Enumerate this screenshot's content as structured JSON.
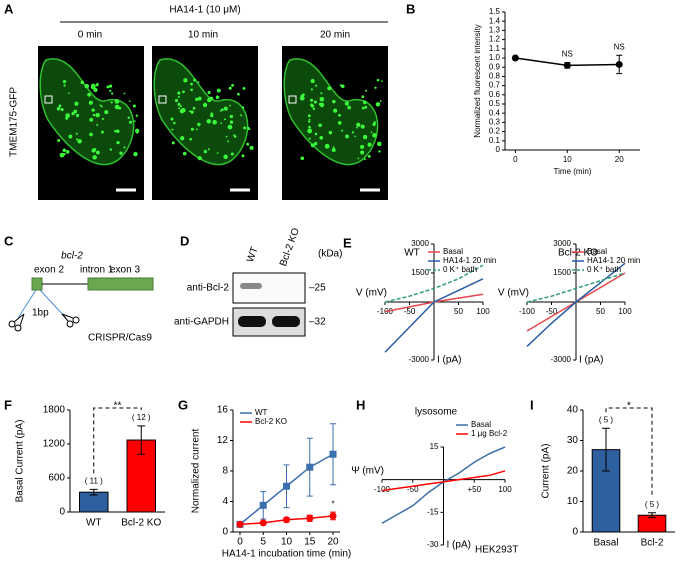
{
  "panel_labels": [
    "A",
    "B",
    "C",
    "D",
    "E",
    "F",
    "G",
    "H",
    "I"
  ],
  "panel_a": {
    "treatment": "HA14-1 (10 μM)",
    "timepoints": [
      "0 min",
      "10 min",
      "20 min"
    ],
    "ylabel": "TMEM175-GFP"
  },
  "panel_c": {
    "gene": "bcl-2",
    "exon2": "exon 2",
    "intron": "intron 1",
    "exon3": "exon 3",
    "deletion": "1bp",
    "method": "CRISPR/Cas9"
  },
  "panel_d": {
    "lanes": [
      "WT",
      "Bcl-2 KO"
    ],
    "unit": "(kDa)",
    "rows": [
      {
        "antibody": "anti-Bcl-2",
        "marker": "–25"
      },
      {
        "antibody": "anti-GAPDH",
        "marker": "–32"
      }
    ]
  },
  "chart_data": [
    {
      "type": "line",
      "ylabel": "Normalized fluorescent intensity",
      "xlabel": "Time (min)",
      "x": [
        0,
        10,
        20
      ],
      "series": [
        {
          "color": "#000000",
          "marker": "circle",
          "values": [
            1.0,
            0.92,
            0.93
          ],
          "errors": [
            0.01,
            0.03,
            0.1
          ],
          "labels": [
            null,
            "NS",
            "NS"
          ]
        }
      ],
      "xlim": [
        -2,
        24
      ],
      "xticks": [
        0,
        10,
        20
      ],
      "ylim": [
        0,
        1.5
      ],
      "yticks": [
        0,
        0.1,
        0.2,
        0.3,
        0.4,
        0.5,
        0.6,
        0.7,
        0.8,
        0.9,
        {
          "value": 1,
          "label": "1.0"
        },
        1.1,
        1.2,
        1.3,
        1.4,
        1.5
      ]
    },
    {
      "type": "line",
      "title": "WT",
      "axes": "origin",
      "xlabel": "V (mV)",
      "ylabel": "I (pA)",
      "x": [
        -100,
        -50,
        0,
        50,
        100
      ],
      "series": [
        {
          "name": "Basal",
          "color": "#e8474a",
          "values": [
            -500,
            -250,
            0,
            200,
            400
          ]
        },
        {
          "name": "HA14-1 20 min",
          "color": "#2a5ca8",
          "values": [
            -2600,
            -1300,
            0,
            600,
            1200
          ]
        },
        {
          "name": "0 K⁺ bath",
          "color": "#2f9e74",
          "dash": true,
          "values": [
            0,
            300,
            700,
            1200,
            1900
          ]
        }
      ],
      "xlim": [
        -100,
        100
      ],
      "xticks": [
        -100,
        -50,
        50,
        100
      ],
      "ylim": [
        -3000,
        3000
      ],
      "yticks": [
        -3000,
        1500,
        3000
      ],
      "legend": "upper left"
    },
    {
      "type": "line",
      "title": "Bcl-2 KO",
      "axes": "origin",
      "xlabel": "V (mV)",
      "ylabel": "I (pA)",
      "x": [
        -100,
        -50,
        0,
        50,
        100
      ],
      "series": [
        {
          "name": "Basal",
          "color": "#e8474a",
          "values": [
            -1500,
            -750,
            0,
            750,
            1500
          ]
        },
        {
          "name": "HA14-1 20 min",
          "color": "#2a5ca8",
          "values": [
            -2300,
            -1100,
            0,
            1000,
            2000
          ]
        },
        {
          "name": "0 K⁺ bath",
          "color": "#2f9e74",
          "dash": true,
          "values": [
            0,
            300,
            700,
            1100,
            1500
          ]
        }
      ],
      "xlim": [
        -100,
        100
      ],
      "xticks": [
        -100,
        -50,
        50,
        100
      ],
      "ylim": [
        -3000,
        3000
      ],
      "yticks": [
        -3000,
        1500,
        3000
      ],
      "legend": "upper left"
    },
    {
      "type": "bar",
      "ylabel": "Basal Current (pA)",
      "categories": [
        "WT",
        "Bcl-2 KO"
      ],
      "values": [
        350,
        1270
      ],
      "errors": [
        50,
        250
      ],
      "colors": [
        "#2e5f9e",
        "#ff0000"
      ],
      "n_labels": [
        "( 11 )",
        "( 12 )"
      ],
      "significance": "**",
      "ylim": [
        0,
        1800
      ],
      "yticks": [
        0,
        600,
        1200,
        1800
      ]
    },
    {
      "type": "line",
      "ylabel": "Normalized current",
      "xlabel": "HA14-1 incubation time (min)",
      "x": [
        0,
        5,
        10,
        15,
        20
      ],
      "series": [
        {
          "name": "WT",
          "color": "#3b6fb0",
          "marker": "square",
          "values": [
            1,
            3.5,
            6,
            8.5,
            10.2
          ],
          "errors": [
            0.3,
            1.8,
            2.8,
            3.8,
            4
          ]
        },
        {
          "name": "Bcl-2 KO",
          "color": "#ff0000",
          "marker": "circle",
          "values": [
            1,
            1.2,
            1.6,
            1.8,
            2.1
          ],
          "errors": [
            0.1,
            0.2,
            0.3,
            0.4,
            0.5
          ],
          "labels": [
            null,
            null,
            null,
            null,
            "*"
          ]
        }
      ],
      "xlim": [
        -1.5,
        21.5
      ],
      "xticks": [
        0,
        5,
        10,
        15,
        20
      ],
      "ylim": [
        0,
        16
      ],
      "yticks": [
        0,
        4,
        8,
        12,
        16
      ],
      "legend": "upper left"
    },
    {
      "type": "line",
      "title": "lysosome",
      "axes": "origin",
      "xlabel": "Ψ (mV)",
      "ylabel": "I (pA)",
      "note": "HEK293T",
      "x": [
        -100,
        -75,
        -50,
        -25,
        0,
        25,
        50,
        75,
        100
      ],
      "series": [
        {
          "name": "Basal",
          "color": "#3a6ea5",
          "values": [
            -20,
            -16,
            -12,
            -6,
            -1,
            3,
            8,
            12,
            15
          ]
        },
        {
          "name": "1 μg Bcl-2",
          "color": "#ff0000",
          "values": [
            -5,
            -4,
            -3,
            -2,
            -1,
            0,
            1,
            2,
            4
          ]
        }
      ],
      "xlim": [
        -100,
        100
      ],
      "xticks": [
        -100,
        -50,
        {
          "value": 50,
          "label": "+50"
        },
        100
      ],
      "ylim": [
        -30,
        15
      ],
      "yticks": [
        -30,
        -15,
        15
      ],
      "legend": "upper right"
    },
    {
      "type": "bar",
      "ylabel": "Current (pA)",
      "categories": [
        "Basal",
        "Bcl-2"
      ],
      "values": [
        27,
        5.5
      ],
      "errors": [
        7,
        0.8
      ],
      "colors": [
        "#2e5f9e",
        "#ff0000"
      ],
      "n_labels": [
        "( 5 )",
        "( 5 )"
      ],
      "significance": "*",
      "ylim": [
        0,
        40
      ],
      "yticks": [
        0,
        10,
        20,
        30,
        40
      ]
    }
  ]
}
